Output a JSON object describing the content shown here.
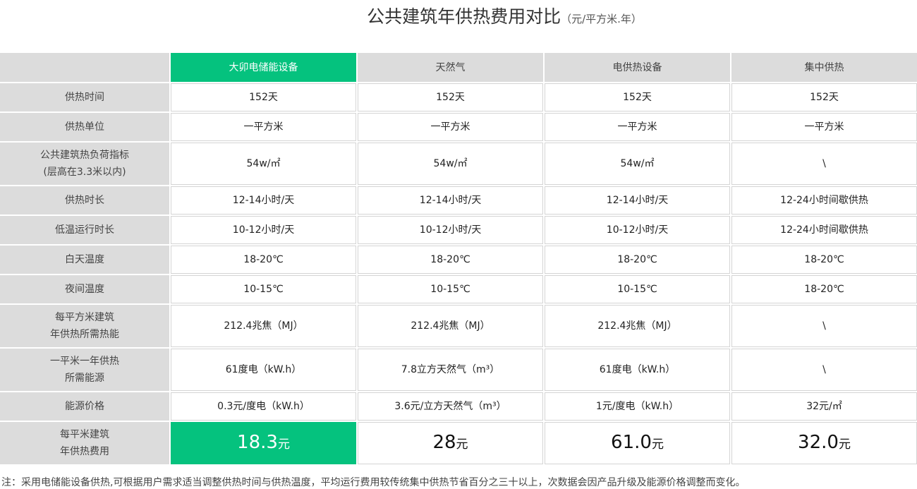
{
  "title": "公共建筑年供热费用对比",
  "title_unit": "（元/平方米.年）",
  "accent_color": "#05c27e",
  "columns": [
    "大卯电储能设备",
    "天然气",
    "电供热设备",
    "集中供热"
  ],
  "rows": [
    {
      "label": [
        "供热时间"
      ],
      "values": [
        "152天",
        "152天",
        "152天",
        "152天"
      ]
    },
    {
      "label": [
        "供热单位"
      ],
      "values": [
        "一平方米",
        "一平方米",
        "一平方米",
        "一平方米"
      ]
    },
    {
      "label": [
        "公共建筑热负荷指标",
        "(层高在3.3米以内)"
      ],
      "values": [
        "54w/㎡",
        "54w/㎡",
        "54w/㎡",
        "\\"
      ]
    },
    {
      "label": [
        "供热时长"
      ],
      "values": [
        "12-14小时/天",
        "12-14小时/天",
        "12-14小时/天",
        "12-24小时间歇供热"
      ]
    },
    {
      "label": [
        "低温运行时长"
      ],
      "values": [
        "10-12小时/天",
        "10-12小时/天",
        "10-12小时/天",
        "12-24小时间歇供热"
      ]
    },
    {
      "label": [
        "白天温度"
      ],
      "values": [
        "18-20℃",
        "18-20℃",
        "18-20℃",
        "18-20℃"
      ]
    },
    {
      "label": [
        "夜间温度"
      ],
      "values": [
        "10-15℃",
        "10-15℃",
        "10-15℃",
        "18-20℃"
      ]
    },
    {
      "label": [
        "每平方米建筑",
        "年供热所需热能"
      ],
      "values": [
        "212.4兆焦（MJ）",
        "212.4兆焦（MJ）",
        "212.4兆焦（MJ）",
        "\\"
      ]
    },
    {
      "label": [
        "一平米一年供热",
        "所需能源"
      ],
      "values": [
        "61度电（kW.h）",
        "7.8立方天然气（m³）",
        "61度电（kW.h）",
        "\\"
      ]
    },
    {
      "label": [
        "能源价格"
      ],
      "values": [
        "0.3元/度电（kW.h）",
        "3.6元/立方天然气（m³）",
        "1元/度电（kW.h）",
        "32元/㎡"
      ]
    }
  ],
  "cost_row": {
    "label": [
      "每平米建筑",
      "年供热费用"
    ],
    "values": [
      "18.3",
      "28",
      "61.0",
      "32.0"
    ],
    "unit": "元"
  },
  "note": "注：采用电储能设备供热,可根据用户需求适当调整供热时间与供热温度，平均运行费用较传统集中供热节省百分之三十以上，次数据会因产品升级及能源价格调整而变化。"
}
